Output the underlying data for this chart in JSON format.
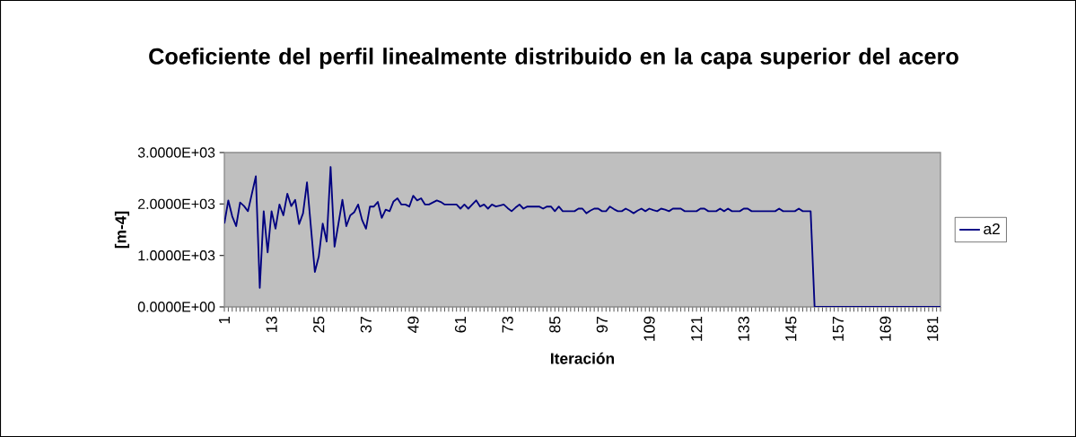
{
  "chart_data": {
    "type": "line",
    "title": "Coeficiente del perfil linealmente distribuido en la capa superior del acero",
    "xlabel": "Iteración",
    "ylabel": "[m-4]",
    "categories": [
      "1",
      null,
      null,
      null,
      null,
      null,
      null,
      null,
      null,
      null,
      null,
      null,
      "13",
      null,
      null,
      null,
      null,
      null,
      null,
      null,
      null,
      null,
      null,
      null,
      "25",
      null,
      null,
      null,
      null,
      null,
      null,
      null,
      null,
      null,
      null,
      null,
      "37",
      null,
      null,
      null,
      null,
      null,
      null,
      null,
      null,
      null,
      null,
      null,
      "49",
      null,
      null,
      null,
      null,
      null,
      null,
      null,
      null,
      null,
      null,
      null,
      "61",
      null,
      null,
      null,
      null,
      null,
      null,
      null,
      null,
      null,
      null,
      null,
      "73",
      null,
      null,
      null,
      null,
      null,
      null,
      null,
      null,
      null,
      null,
      null,
      "85",
      null,
      null,
      null,
      null,
      null,
      null,
      null,
      null,
      null,
      null,
      null,
      "97",
      null,
      null,
      null,
      null,
      null,
      null,
      null,
      null,
      null,
      null,
      null,
      "109",
      null,
      null,
      null,
      null,
      null,
      null,
      null,
      null,
      null,
      null,
      null,
      "121",
      null,
      null,
      null,
      null,
      null,
      null,
      null,
      null,
      null,
      null,
      null,
      "133",
      null,
      null,
      null,
      null,
      null,
      null,
      null,
      null,
      null,
      null,
      null,
      "145",
      null,
      null,
      null,
      null,
      null,
      null,
      null,
      null,
      null,
      null,
      null,
      "157",
      null,
      null,
      null,
      null,
      null,
      null,
      null,
      null,
      null,
      null,
      null,
      "169",
      null,
      null,
      null,
      null,
      null,
      null,
      null,
      null,
      null,
      null,
      null,
      "181",
      null,
      null
    ],
    "series": [
      {
        "name": "a2",
        "color": "#000080",
        "values": [
          1620,
          2070,
          1760,
          1570,
          2030,
          1960,
          1860,
          2200,
          2540,
          370,
          1860,
          1060,
          1860,
          1520,
          1990,
          1780,
          2200,
          1960,
          2080,
          1610,
          1820,
          2420,
          1550,
          680,
          980,
          1620,
          1270,
          2720,
          1170,
          1620,
          2080,
          1570,
          1780,
          1840,
          1990,
          1690,
          1520,
          1950,
          1950,
          2040,
          1730,
          1890,
          1860,
          2050,
          2110,
          1990,
          1990,
          1950,
          2160,
          2070,
          2110,
          1990,
          1990,
          2030,
          2070,
          2040,
          1990,
          1990,
          1990,
          1990,
          1910,
          1990,
          1910,
          1990,
          2070,
          1950,
          1990,
          1910,
          1990,
          1950,
          1970,
          1990,
          1920,
          1860,
          1930,
          1990,
          1910,
          1950,
          1950,
          1950,
          1950,
          1910,
          1950,
          1950,
          1860,
          1950,
          1860,
          1860,
          1860,
          1860,
          1910,
          1910,
          1820,
          1870,
          1910,
          1910,
          1860,
          1860,
          1950,
          1900,
          1860,
          1860,
          1910,
          1870,
          1820,
          1870,
          1910,
          1860,
          1910,
          1880,
          1860,
          1910,
          1890,
          1860,
          1910,
          1910,
          1910,
          1860,
          1860,
          1860,
          1860,
          1910,
          1910,
          1860,
          1860,
          1860,
          1910,
          1860,
          1910,
          1860,
          1860,
          1860,
          1910,
          1910,
          1860,
          1860,
          1860,
          1860,
          1860,
          1860,
          1860,
          1910,
          1860,
          1860,
          1860,
          1860,
          1910,
          1860,
          1860,
          1860,
          0,
          0,
          0,
          0,
          0,
          0,
          0,
          0,
          0,
          0,
          0,
          0,
          0,
          0,
          0,
          0,
          0,
          0,
          0,
          0,
          0,
          0,
          0,
          0,
          0,
          0,
          0,
          0,
          0,
          0,
          0,
          0,
          0
        ]
      }
    ],
    "ylim": [
      0,
      3000
    ],
    "yticks": [
      {
        "value": 0,
        "label": "0.0000E+00"
      },
      {
        "value": 1000,
        "label": "1.0000E+03"
      },
      {
        "value": 2000,
        "label": "2.0000E+03"
      },
      {
        "value": 3000,
        "label": "3.0000E+03"
      }
    ],
    "legend": "right",
    "marker": "none",
    "line_style": "solid"
  }
}
